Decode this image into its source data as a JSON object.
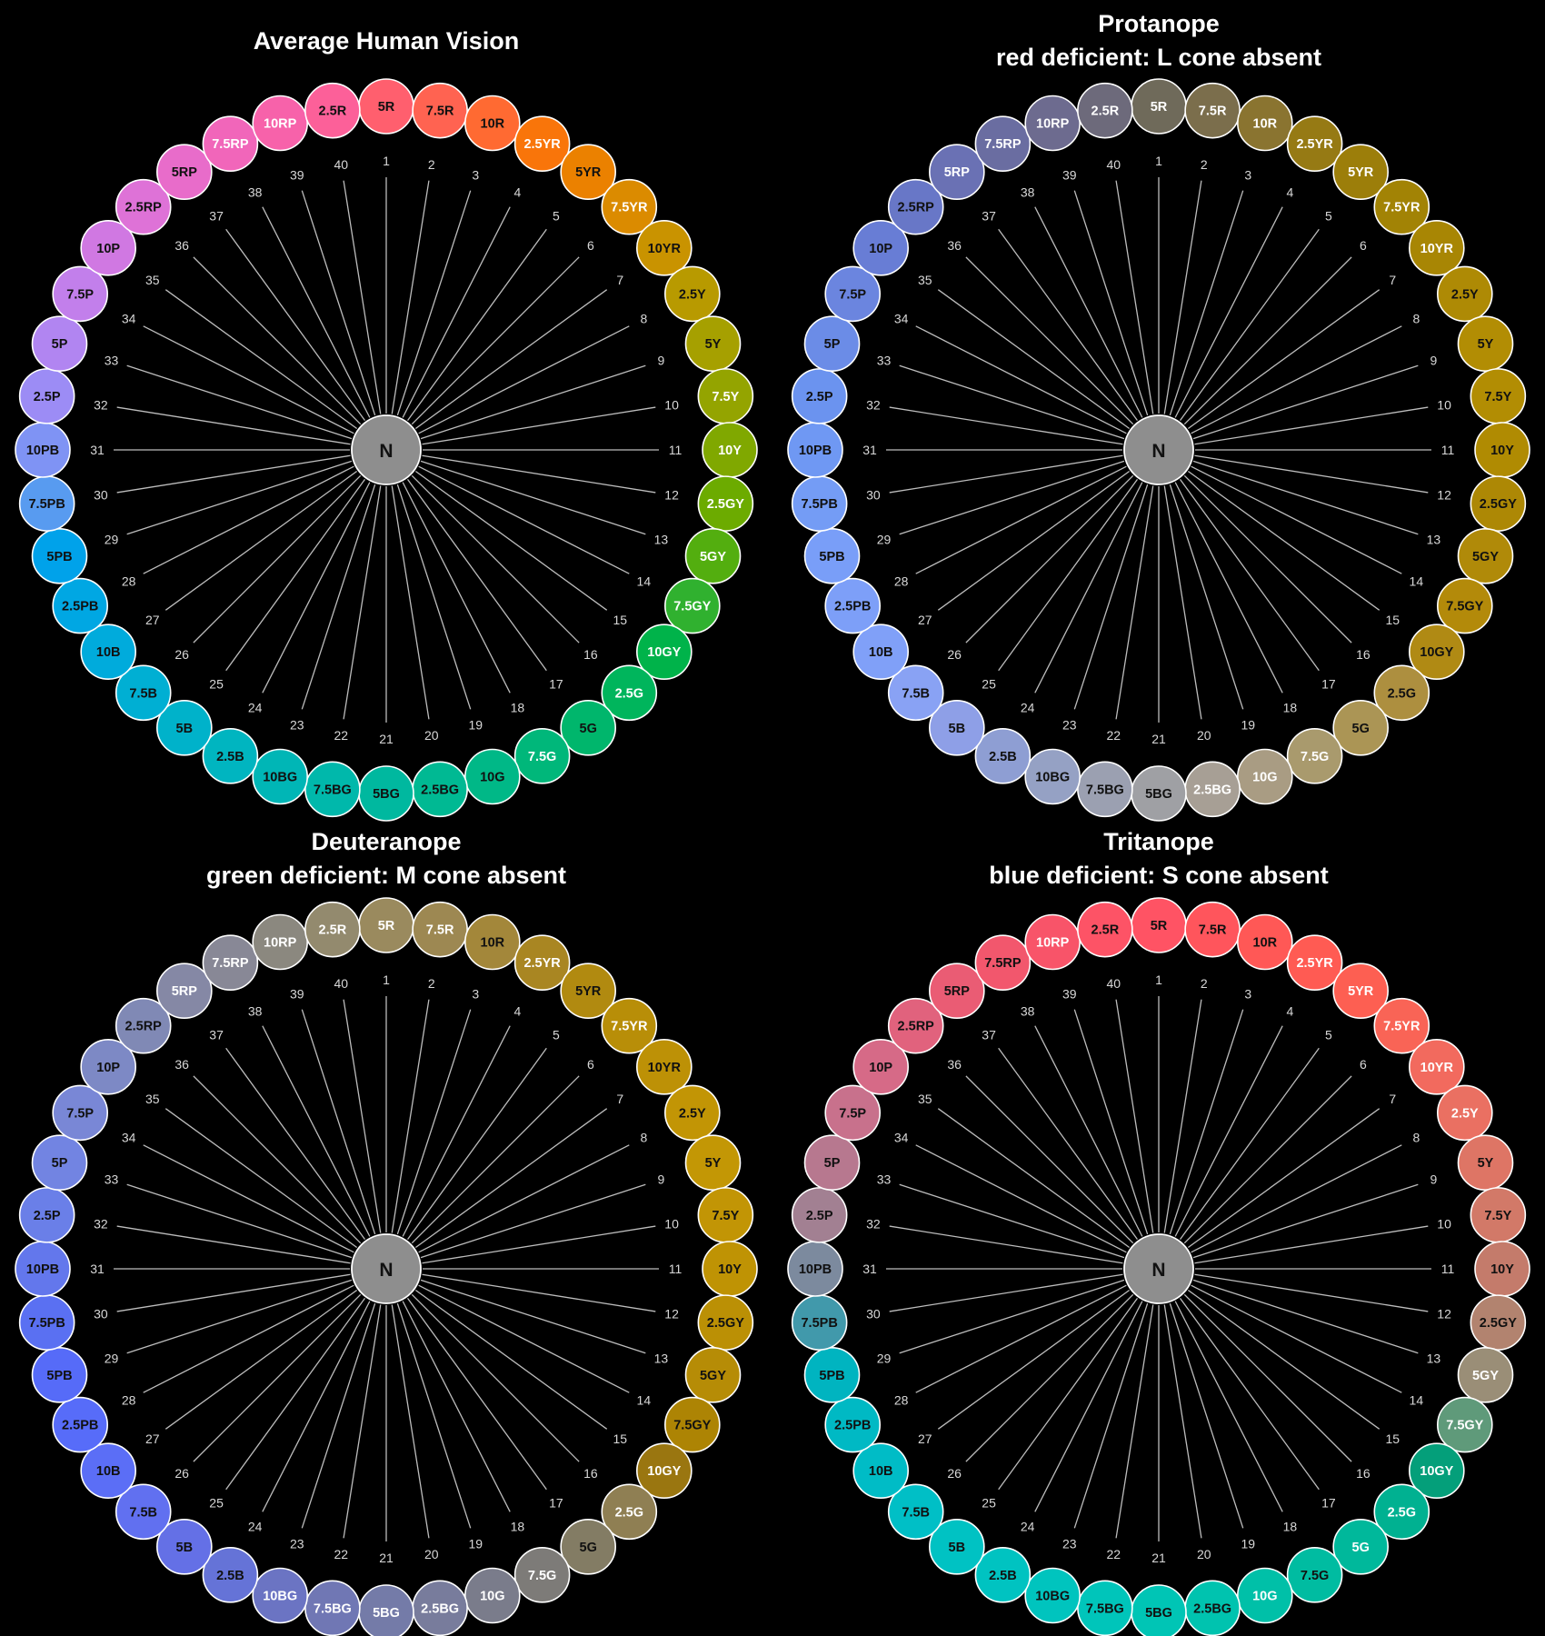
{
  "hue_labels": [
    "5R",
    "7.5R",
    "10R",
    "2.5YR",
    "5YR",
    "7.5YR",
    "10YR",
    "2.5Y",
    "5Y",
    "7.5Y",
    "10Y",
    "2.5GY",
    "5GY",
    "7.5GY",
    "10GY",
    "2.5G",
    "5G",
    "7.5G",
    "10G",
    "2.5BG",
    "5BG",
    "7.5BG",
    "10BG",
    "2.5B",
    "5B",
    "7.5B",
    "10B",
    "2.5PB",
    "5PB",
    "7.5PB",
    "10PB",
    "2.5P",
    "5P",
    "7.5P",
    "10P",
    "2.5RP",
    "5RP",
    "7.5RP",
    "10RP",
    "2.5R"
  ],
  "index_labels": [
    "1",
    "2",
    "3",
    "4",
    "5",
    "6",
    "7",
    "8",
    "9",
    "10",
    "11",
    "12",
    "13",
    "14",
    "15",
    "16",
    "17",
    "18",
    "19",
    "20",
    "21",
    "22",
    "23",
    "24",
    "25",
    "26",
    "27",
    "28",
    "29",
    "30",
    "31",
    "32",
    "33",
    "34",
    "35",
    "36",
    "37",
    "38",
    "39",
    "40"
  ],
  "center": {
    "label": "N",
    "color": "#8e8e8e"
  },
  "panels": [
    {
      "id": "average",
      "title_lines": [
        "Average Human Vision"
      ],
      "colors": [
        "#ff5f6e",
        "#ff6351",
        "#ff6a32",
        "#f9750a",
        "#eb8100",
        "#db8b00",
        "#c99300",
        "#b89a00",
        "#a6a000",
        "#94a400",
        "#80a800",
        "#6cab00",
        "#53ae0f",
        "#30b12f",
        "#00b34a",
        "#00b55c",
        "#00b66c",
        "#00b77a",
        "#00b887",
        "#00b993",
        "#00b89f",
        "#00b8ab",
        "#00b6b6",
        "#00b5c0",
        "#00b2ca",
        "#00afd3",
        "#00abdc",
        "#00a7e3",
        "#00a2ea",
        "#589bf0",
        "#7f93f4",
        "#9c8cf5",
        "#b185f1",
        "#c27feb",
        "#d078e2",
        "#de72d7",
        "#e86cca",
        "#f166ba",
        "#f762aa",
        "#fc6099"
      ],
      "text_colors": [
        "#111111",
        "#111111",
        "#111111",
        "#ffffff",
        "#111111",
        "#ffffff",
        "#111111",
        "#111111",
        "#111111",
        "#ffffff",
        "#ffffff",
        "#ffffff",
        "#ffffff",
        "#ffffff",
        "#ffffff",
        "#ffffff",
        "#111111",
        "#ffffff",
        "#111111",
        "#111111",
        "#111111",
        "#111111",
        "#111111",
        "#111111",
        "#111111",
        "#111111",
        "#111111",
        "#111111",
        "#111111",
        "#111111",
        "#111111",
        "#111111",
        "#111111",
        "#111111",
        "#111111",
        "#111111",
        "#111111",
        "#ffffff",
        "#ffffff",
        "#111111"
      ]
    },
    {
      "id": "protanope",
      "title_lines": [
        "Protanope",
        "red deficient: L cone absent"
      ],
      "colors": [
        "#6f6a5a",
        "#7b6e4c",
        "#8a7430",
        "#967a14",
        "#9c7e0a",
        "#a28305",
        "#a88604",
        "#ae8a05",
        "#b28d04",
        "#b28d03",
        "#b08b02",
        "#ad8805",
        "#b08a09",
        "#b38a0a",
        "#b08a14",
        "#ad8f3f",
        "#ab9555",
        "#a99a6d",
        "#a99c83",
        "#a79f95",
        "#9fa0a4",
        "#9ba0b1",
        "#95a1c4",
        "#8e9ed3",
        "#8e9fe7",
        "#89a2f4",
        "#80a0f8",
        "#7d9ff8",
        "#799ef8",
        "#749cf5",
        "#6f98f3",
        "#6b93ef",
        "#6b8ce7",
        "#6b85df",
        "#687dd5",
        "#6877c7",
        "#6a71b4",
        "#6a6da1",
        "#6d6b8f",
        "#6d6a7b"
      ],
      "text_colors": [
        "#ffffff",
        "#ffffff",
        "#ffffff",
        "#ffffff",
        "#ffffff",
        "#ffffff",
        "#ffffff",
        "#111111",
        "#111111",
        "#111111",
        "#111111",
        "#111111",
        "#111111",
        "#111111",
        "#111111",
        "#111111",
        "#111111",
        "#ffffff",
        "#ffffff",
        "#ffffff",
        "#111111",
        "#111111",
        "#111111",
        "#111111",
        "#111111",
        "#111111",
        "#111111",
        "#111111",
        "#111111",
        "#111111",
        "#111111",
        "#111111",
        "#111111",
        "#111111",
        "#111111",
        "#111111",
        "#ffffff",
        "#ffffff",
        "#ffffff",
        "#ffffff"
      ]
    },
    {
      "id": "deuteranope",
      "title_lines": [
        "Deuteranope",
        "green deficient: M cone absent"
      ],
      "colors": [
        "#9a8a5e",
        "#9d8852",
        "#a3873a",
        "#a98622",
        "#b18a10",
        "#b88e08",
        "#bd9106",
        "#c29505",
        "#c39705",
        "#c29505",
        "#bf9304",
        "#bb9005",
        "#b68c06",
        "#ad8404",
        "#9a7610",
        "#8f7f53",
        "#837c64",
        "#7d7b78",
        "#7a7c8b",
        "#787c9c",
        "#747ba8",
        "#7077b4",
        "#6b74c3",
        "#6573d7",
        "#6470e6",
        "#6170f0",
        "#5b6ef6",
        "#576cf9",
        "#566bf8",
        "#5a70f2",
        "#6377ec",
        "#6a7fe8",
        "#7284e2",
        "#7987d6",
        "#7d89c5",
        "#8089b5",
        "#8588a5",
        "#888896",
        "#8b887f",
        "#938a6e"
      ],
      "text_colors": [
        "#ffffff",
        "#ffffff",
        "#111111",
        "#ffffff",
        "#111111",
        "#ffffff",
        "#111111",
        "#111111",
        "#111111",
        "#111111",
        "#111111",
        "#111111",
        "#111111",
        "#111111",
        "#ffffff",
        "#ffffff",
        "#111111",
        "#ffffff",
        "#ffffff",
        "#ffffff",
        "#ffffff",
        "#ffffff",
        "#ffffff",
        "#111111",
        "#111111",
        "#111111",
        "#111111",
        "#111111",
        "#111111",
        "#111111",
        "#111111",
        "#111111",
        "#111111",
        "#111111",
        "#111111",
        "#111111",
        "#ffffff",
        "#ffffff",
        "#ffffff",
        "#ffffff"
      ]
    },
    {
      "id": "tritanope",
      "title_lines": [
        "Tritanope",
        "blue deficient: S cone absent"
      ],
      "colors": [
        "#ff5364",
        "#ff555c",
        "#ff5856",
        "#ff5b53",
        "#fd5f52",
        "#f96456",
        "#f26a5e",
        "#ea7062",
        "#de7565",
        "#d27968",
        "#c47b6b",
        "#b2836f",
        "#9a8e77",
        "#5f9a7a",
        "#049f7a",
        "#00b191",
        "#00b89b",
        "#00bca1",
        "#00c0a8",
        "#00c3af",
        "#00c5b5",
        "#00c5ba",
        "#00c4be",
        "#00c3c1",
        "#00c2c3",
        "#00bfc6",
        "#00bcc6",
        "#00b9c4",
        "#00b4c0",
        "#4199ab",
        "#7c8a9e",
        "#a28092",
        "#b7788f",
        "#c8718c",
        "#d66a87",
        "#e1627d",
        "#ea5c74",
        "#f2576d",
        "#f85469",
        "#fd5366"
      ],
      "text_colors": [
        "#111111",
        "#111111",
        "#111111",
        "#ffffff",
        "#ffffff",
        "#ffffff",
        "#ffffff",
        "#ffffff",
        "#111111",
        "#111111",
        "#111111",
        "#111111",
        "#ffffff",
        "#ffffff",
        "#ffffff",
        "#ffffff",
        "#ffffff",
        "#111111",
        "#ffffff",
        "#111111",
        "#111111",
        "#111111",
        "#111111",
        "#111111",
        "#111111",
        "#111111",
        "#111111",
        "#111111",
        "#111111",
        "#111111",
        "#111111",
        "#111111",
        "#111111",
        "#111111",
        "#111111",
        "#111111",
        "#111111",
        "#111111",
        "#ffffff",
        "#111111"
      ]
    }
  ]
}
